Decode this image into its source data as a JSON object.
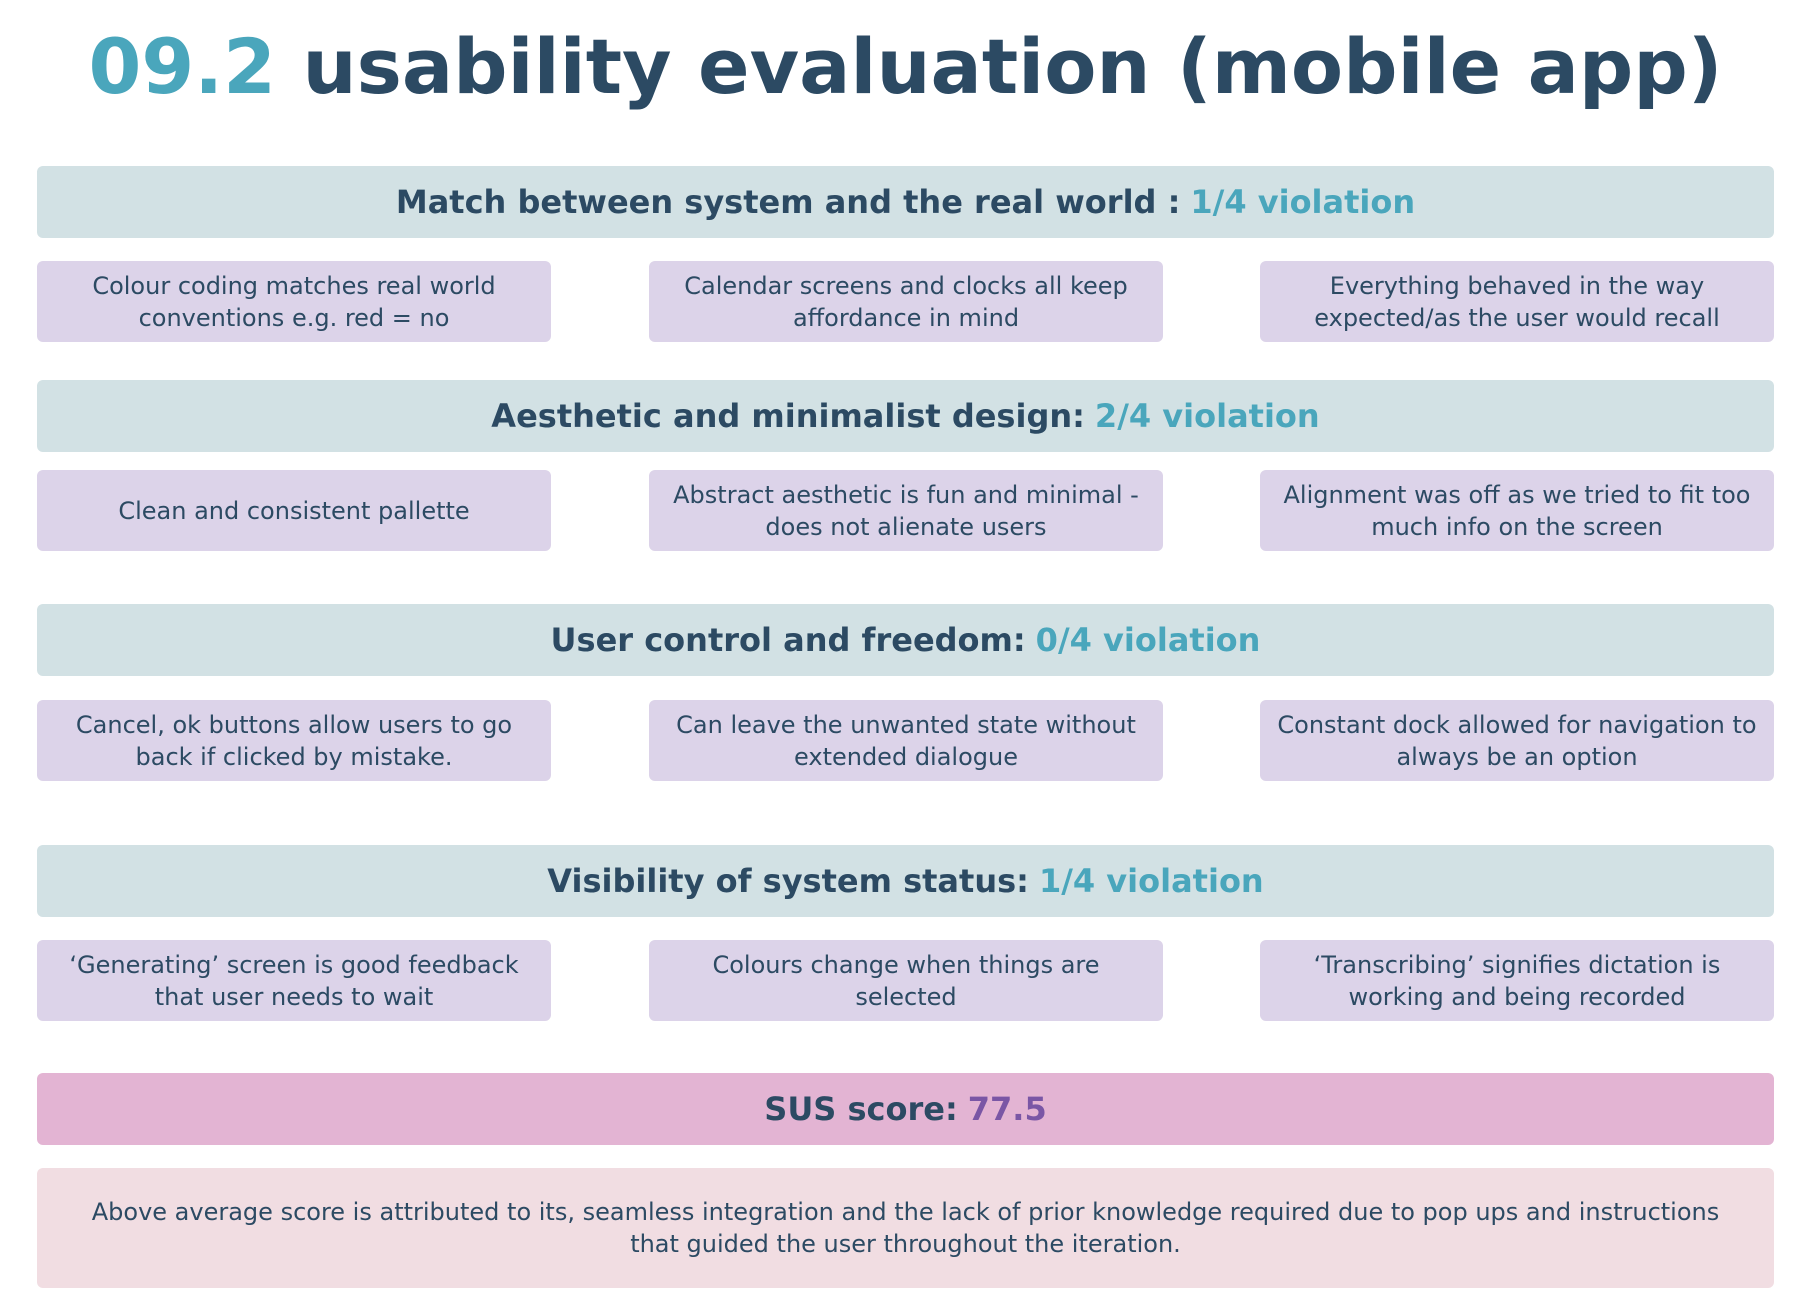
{
  "title": {
    "number": "09.2",
    "text": "usability evaluation (mobile app)"
  },
  "sections": [
    {
      "heading": "Match between system and the real world :",
      "violation": "1/4 violation",
      "cards": [
        "Colour coding matches real world conventions e.g. red = no",
        "Calendar screens and clocks all keep affordance in mind",
        "Everything behaved in the way expected/as the user would recall"
      ]
    },
    {
      "heading": "Aesthetic and minimalist design:",
      "violation": "2/4 violation",
      "cards": [
        "Clean and consistent pallette",
        "Abstract aesthetic is fun and minimal - does not alienate users",
        "Alignment was off as we tried to fit too much info on the screen"
      ]
    },
    {
      "heading": "User control and freedom:",
      "violation": "0/4 violation",
      "cards": [
        "Cancel, ok buttons allow users to go back if clicked by mistake.",
        "Can leave the unwanted state without extended dialogue",
        "Constant dock allowed for navigation to always be an option"
      ]
    },
    {
      "heading": "Visibility of system status:",
      "violation": "1/4 violation",
      "cards": [
        "‘Generating’ screen is good feedback that user needs to wait",
        "Colours change when things are selected",
        "‘Transcribing’ signifies dictation is working and being recorded"
      ]
    }
  ],
  "sus": {
    "label": "SUS score:",
    "score": "77.5",
    "summary": "Above average score is attributed to its, seamless integration and the lack of prior knowledge required due to pop ups and instructions that guided the user throughout the iteration."
  },
  "colors": {
    "title": "#2c4a63",
    "accent": "#4aa6bc",
    "heading_band": "#d2e1e4",
    "card": "#dcd3e9",
    "sus_band": "#e3b4d3",
    "sus_score": "#7a56a5",
    "summary_box": "#f1dde2"
  }
}
